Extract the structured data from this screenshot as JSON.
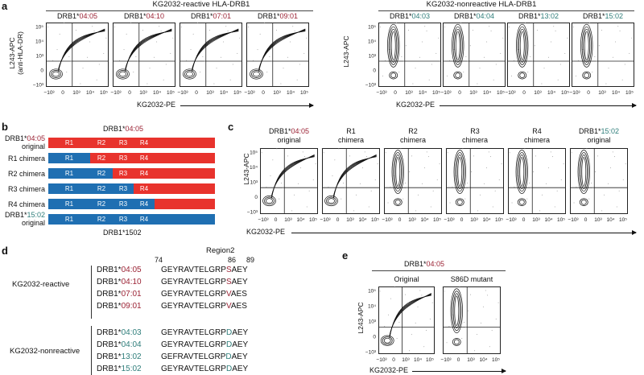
{
  "panel_labels": {
    "a": "a",
    "b": "b",
    "c": "c",
    "d": "d",
    "e": "e"
  },
  "panel_a": {
    "reactive_title": "KG2032-reactive HLA-DRB1",
    "nonreactive_title": "KG2032-nonreactive HLA-DRB1",
    "ylabel_line1": "L243-APC",
    "ylabel_line2": "(anti-HLA-DR)",
    "ylabel_right": "L243-APC",
    "xlabel": "KG2032-PE",
    "plots": [
      {
        "prefix": "DRB1*",
        "allele": "04:05",
        "color": "red"
      },
      {
        "prefix": "DRB1*",
        "allele": "04:10",
        "color": "red"
      },
      {
        "prefix": "DRB1*",
        "allele": "07:01",
        "color": "red"
      },
      {
        "prefix": "DRB1*",
        "allele": "09:01",
        "color": "red"
      },
      {
        "prefix": "DRB1*",
        "allele": "04:03",
        "color": "teal"
      },
      {
        "prefix": "DRB1*",
        "allele": "04:04",
        "color": "teal"
      },
      {
        "prefix": "DRB1*",
        "allele": "13:02",
        "color": "teal"
      },
      {
        "prefix": "DRB1*",
        "allele": "15:02",
        "color": "teal"
      }
    ]
  },
  "axis_ticks": {
    "y": [
      "10⁵",
      "10⁴",
      "10³",
      "0",
      "−10³"
    ],
    "x": [
      "−10³",
      "0",
      "10³",
      "10⁴",
      "10⁵"
    ]
  },
  "panel_b": {
    "top_prefix": "DRB1*",
    "top_allele": "04:05",
    "bottom_text": "DRB1*1502",
    "rows": [
      {
        "label1": "DRB1*04:05",
        "label2": "original",
        "pattern": [
          "red",
          "red",
          "red",
          "red",
          "red"
        ]
      },
      {
        "label1": "R1 chimera",
        "label2": "",
        "pattern": [
          "blue",
          "red",
          "red",
          "red",
          "red"
        ]
      },
      {
        "label1": "R2 chimera",
        "label2": "",
        "pattern": [
          "blue",
          "blue",
          "red",
          "red",
          "red"
        ]
      },
      {
        "label1": "R3 chimera",
        "label2": "",
        "pattern": [
          "blue",
          "blue",
          "blue",
          "red",
          "red"
        ]
      },
      {
        "label1": "R4 chimera",
        "label2": "",
        "pattern": [
          "blue",
          "blue",
          "blue",
          "blue",
          "red"
        ]
      },
      {
        "label1": "DRB1*15:02",
        "label2": "original",
        "pattern": [
          "blue",
          "blue",
          "blue",
          "blue",
          "blue"
        ]
      }
    ],
    "region_labels": [
      "R1",
      "R2",
      "R3",
      "R4"
    ]
  },
  "panel_c": {
    "ylabel": "L243-APC",
    "xlabel": "KG2032-PE",
    "plots": [
      {
        "line1": "DRB1*04:05",
        "line2": "original"
      },
      {
        "line1": "R1",
        "line2": "chimera"
      },
      {
        "line1": "R2",
        "line2": "chimera"
      },
      {
        "line1": "R3",
        "line2": "chimera"
      },
      {
        "line1": "R4",
        "line2": "chimera"
      },
      {
        "line1": "DRB1*15:02",
        "line2": "original"
      }
    ]
  },
  "panel_d": {
    "region_label": "Region2",
    "pos_start": "74",
    "pos_86": "86",
    "pos_89": "89",
    "reactive_group": "KG2032-reactive",
    "nonreactive_group": "KG2032-nonreactive",
    "rows": [
      {
        "prefix": "DRB1*",
        "allele": "04:05",
        "color": "red",
        "seq_a": "GEYRAVTELGRP",
        "seq_b": "S",
        "seq_c": "AEY"
      },
      {
        "prefix": "DRB1*",
        "allele": "04:10",
        "color": "red",
        "seq_a": "GEYRAVTELGRP",
        "seq_b": "S",
        "seq_c": "AEY"
      },
      {
        "prefix": "DRB1*",
        "allele": "07:01",
        "color": "red",
        "seq_a": "GEYRAVTELGRP",
        "seq_b": "V",
        "seq_c": "AES"
      },
      {
        "prefix": "DRB1*",
        "allele": "09:01",
        "color": "red",
        "seq_a": "GEYRAVTELGRP",
        "seq_b": "V",
        "seq_c": "AES"
      },
      {
        "prefix": "DRB1*",
        "allele": "04:03",
        "color": "teal",
        "seq_a": "GEYRAVTELGRP",
        "seq_b": "D",
        "seq_c": "AEY"
      },
      {
        "prefix": "DRB1*",
        "allele": "04:04",
        "color": "teal",
        "seq_a": "GEYRAVTELGRP",
        "seq_b": "D",
        "seq_c": "AEY"
      },
      {
        "prefix": "DRB1*",
        "allele": "13:02",
        "color": "teal",
        "seq_a": "GEFRAVTELGRP",
        "seq_b": "D",
        "seq_c": "AEY"
      },
      {
        "prefix": "DRB1*",
        "allele": "15:02",
        "color": "teal",
        "seq_a": "GEYRAVTELGRP",
        "seq_b": "D",
        "seq_c": "AEY"
      }
    ]
  },
  "panel_e": {
    "title_prefix": "DRB1*",
    "title_allele": "04:05",
    "plots": [
      "Original",
      "S86D mutant"
    ],
    "ylabel": "L243-APC",
    "xlabel": "KG2032-PE"
  },
  "colors": {
    "red": "#9b2335",
    "teal": "#2e7d7a",
    "bar_red": "#e8332d",
    "bar_blue": "#1f6fb2"
  }
}
